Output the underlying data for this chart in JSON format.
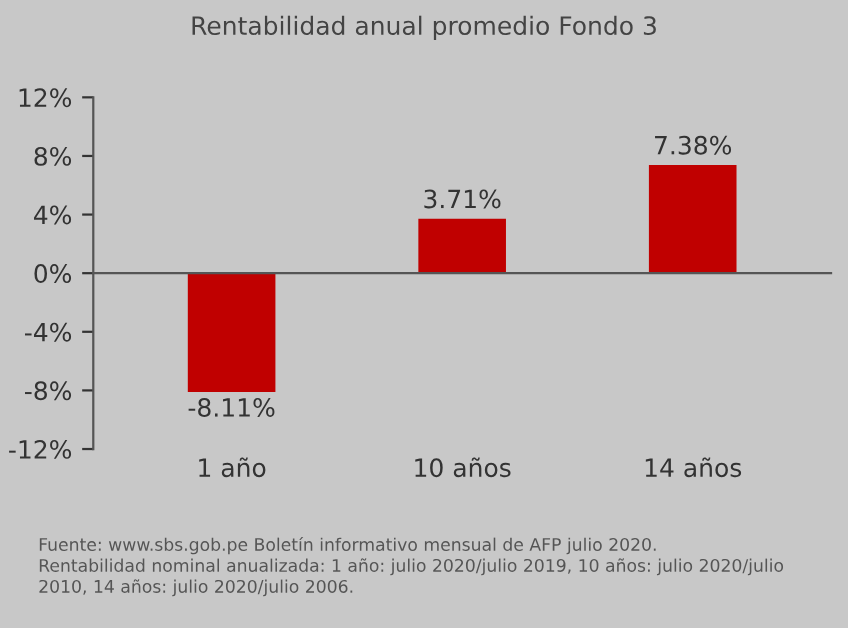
{
  "chart_data": {
    "type": "bar",
    "title": "Rentabilidad anual promedio Fondo 3",
    "categories": [
      "1 año",
      "10 años",
      "14 años"
    ],
    "values": [
      -8.11,
      3.71,
      7.38
    ],
    "value_labels": [
      "-8.11%",
      "3.71%",
      "7.38%"
    ],
    "color": "#c00000",
    "ylim": [
      -12,
      12
    ],
    "yticks": [
      {
        "value": -12,
        "label": "-12%"
      },
      {
        "value": -8,
        "label": "-8%"
      },
      {
        "value": -4,
        "label": "-4%"
      },
      {
        "value": 0,
        "label": "0%"
      },
      {
        "value": 4,
        "label": "4%"
      },
      {
        "value": 8,
        "label": "8%"
      },
      {
        "value": 12,
        "label": "12%"
      }
    ],
    "annotations": [
      "Fuente: www.sbs.gob.pe Boletín informativo mensual de AFP julio 2020.\nRentabilidad nominal anualizada: 1 año: julio 2020/julio 2019, 10 años: julio 2020/julio\n2010, 14 años: julio 2020/julio 2006."
    ]
  }
}
